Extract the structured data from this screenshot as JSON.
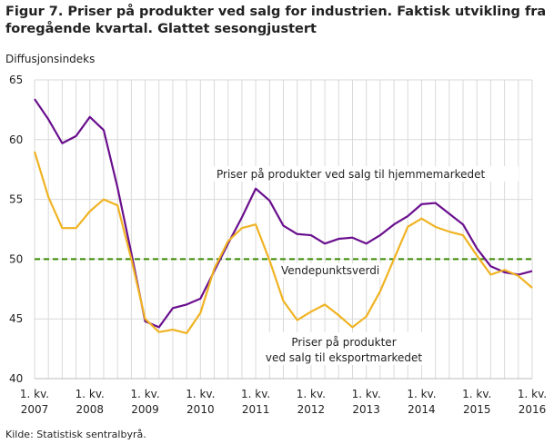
{
  "chart_data": {
    "type": "line",
    "title": "Figur 7. Priser på produkter ved salg for industrien. Faktisk utvikling fra foregående kvartal. Glattet sesongjustert",
    "ylabel": "Diffusjonsindeks",
    "xlabel": "",
    "ylim": [
      40,
      65
    ],
    "yticks": [
      40,
      45,
      50,
      55,
      60,
      65
    ],
    "xtick_prefix": "1. kv.",
    "xtick_years": [
      "2007",
      "2008",
      "2009",
      "2010",
      "2011",
      "2012",
      "2013",
      "2014",
      "2015",
      "2016"
    ],
    "x_start": "2007 Q1",
    "x_end": "2016 Q1",
    "grid": true,
    "reference_line": {
      "value": 50,
      "label": "Vendepunktsverdi",
      "color": "#3a8a00"
    },
    "series": [
      {
        "name": "Priser på produkter ved salg til hjemmemarkedet",
        "color": "#6a0f8e",
        "values": [
          63.4,
          61.7,
          59.7,
          60.3,
          61.9,
          60.8,
          56.0,
          50.5,
          44.8,
          44.3,
          45.9,
          46.2,
          46.7,
          49.0,
          51.3,
          53.5,
          55.9,
          54.9,
          52.8,
          52.1,
          52.0,
          51.3,
          51.7,
          51.8,
          51.3,
          52.0,
          52.9,
          53.6,
          54.6,
          54.7,
          53.8,
          52.9,
          50.9,
          49.4,
          48.9,
          48.7,
          49.0
        ]
      },
      {
        "name": "Priser på produkter ved salg til eksportmarkedet",
        "label_lines": [
          "Priser på produkter",
          "ved salg til eksportmarkedet"
        ],
        "color": "#f0b323",
        "values": [
          59.0,
          55.2,
          52.6,
          52.6,
          54.0,
          55.0,
          54.5,
          50.0,
          45.0,
          43.9,
          44.1,
          43.8,
          45.5,
          49.2,
          51.5,
          52.6,
          52.9,
          49.9,
          46.5,
          44.9,
          45.6,
          46.2,
          45.3,
          44.3,
          45.2,
          47.3,
          50.0,
          52.7,
          53.4,
          52.7,
          52.3,
          52.0,
          50.3,
          48.7,
          49.1,
          48.6,
          47.6
        ]
      }
    ],
    "source": "Kilde: Statistisk sentralbyrå."
  }
}
